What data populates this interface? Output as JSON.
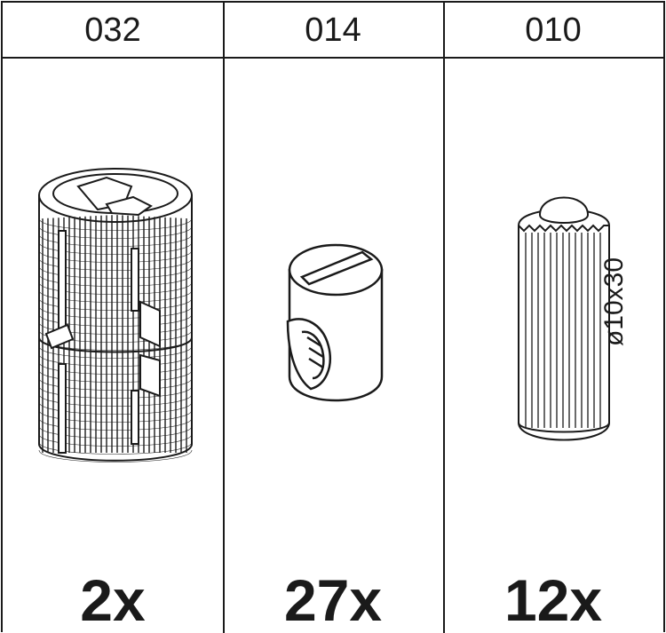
{
  "columns": [
    {
      "code": "032",
      "quantity": "2x",
      "part": "cam-lock-dowel-icon"
    },
    {
      "code": "014",
      "quantity": "27x",
      "part": "barrel-nut-icon"
    },
    {
      "code": "010",
      "quantity": "12x",
      "part": "wooden-dowel-icon",
      "dimension": "ø10x30"
    }
  ],
  "colors": {
    "line": "#1a1a1a",
    "fill": "#ffffff"
  }
}
